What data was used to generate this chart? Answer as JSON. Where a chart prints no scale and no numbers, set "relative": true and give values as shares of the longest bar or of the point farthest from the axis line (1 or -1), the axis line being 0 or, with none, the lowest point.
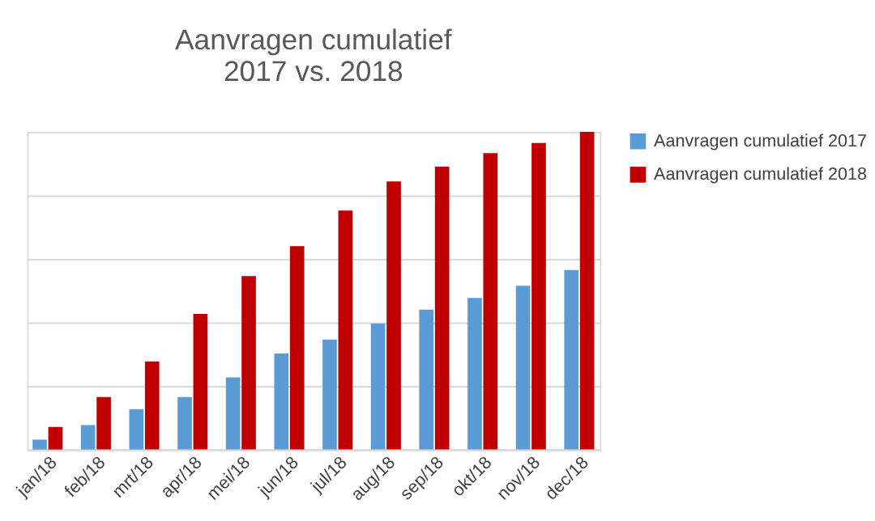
{
  "chart_data": {
    "type": "bar",
    "title": [
      "Aanvragen cumulatief",
      "2017 vs. 2018"
    ],
    "relative": true,
    "grid": "y",
    "legend": "right",
    "categories": [
      "jan/18",
      "feb/18",
      "mrt/18",
      "apr/18",
      "mei/18",
      "jun/18",
      "jul/18",
      "aug/18",
      "sep/18",
      "okt/18",
      "nov/18",
      "dec/18"
    ],
    "series": [
      {
        "name": "Aanvragen cumulatief 2017",
        "color": "#5b9bd5",
        "values": [
          0.031,
          0.077,
          0.127,
          0.165,
          0.227,
          0.302,
          0.346,
          0.396,
          0.44,
          0.477,
          0.515,
          0.565
        ]
      },
      {
        "name": "Aanvragen cumulatief 2018",
        "color": "#c00000",
        "values": [
          0.071,
          0.165,
          0.277,
          0.427,
          0.546,
          0.64,
          0.752,
          0.844,
          0.89,
          0.933,
          0.965,
          1
        ]
      }
    ]
  }
}
